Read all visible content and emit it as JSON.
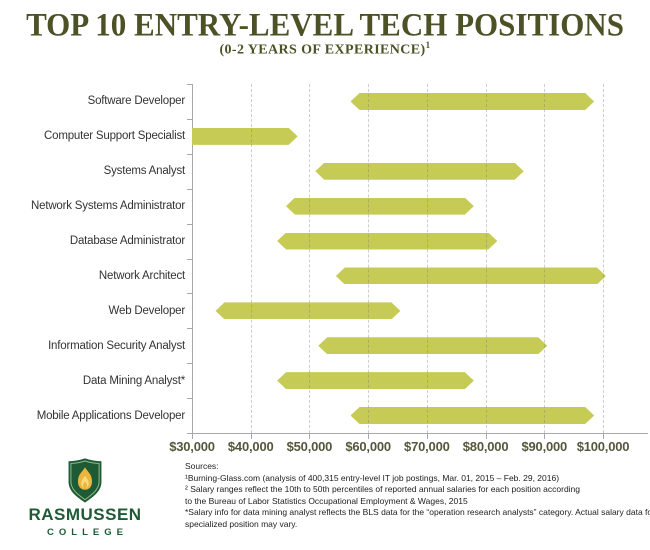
{
  "title": "TOP 10 ENTRY-LEVEL TECH POSITIONS",
  "subtitle": "(0-2 YEARS OF EXPERIENCE)",
  "subtitle_sup": "1",
  "chart_data": {
    "type": "bar",
    "variant": "horizontal-range",
    "title": "Top 10 Entry-Level Tech Positions (0-2 Years of Experience)",
    "xlabel": "",
    "ylabel": "",
    "xlim": [
      30000,
      100000
    ],
    "grid": "vertical-dashed",
    "legend": "none",
    "categories": [
      "Software Developer",
      "Computer Support Specialist",
      "Systems Analyst",
      "Network Systems Administrator",
      "Database Administrator",
      "Network Architect",
      "Web Developer",
      "Information Security Analyst",
      "Data Mining Analyst*",
      "Mobile Applications Developer"
    ],
    "series": [
      {
        "name": "Salary range (10th to 50th percentile)",
        "ranges": [
          [
            57000,
            98500
          ],
          [
            30000,
            48000
          ],
          [
            51000,
            86500
          ],
          [
            46000,
            78000
          ],
          [
            44500,
            82000
          ],
          [
            54500,
            100500
          ],
          [
            34000,
            65500
          ],
          [
            51500,
            90500
          ],
          [
            44500,
            78000
          ],
          [
            57000,
            98500
          ]
        ]
      }
    ],
    "x_ticks": [
      {
        "value": 30000,
        "label": "$30,000"
      },
      {
        "value": 40000,
        "label": "$40,000"
      },
      {
        "value": 50000,
        "label": "$50,000"
      },
      {
        "value": 60000,
        "label": "$60,000"
      },
      {
        "value": 70000,
        "label": "$70,000"
      },
      {
        "value": 80000,
        "label": "$80,000"
      },
      {
        "value": 90000,
        "label": "$90,000"
      },
      {
        "value": 100000,
        "label": "$100,000"
      }
    ]
  },
  "footer": {
    "sources_heading": "Sources:",
    "lines": [
      "¹Burning-Glass.com (analysis of 400,315 entry-level IT job postings, Mar. 01, 2015 – Feb. 29, 2016)",
      "² Salary ranges reflect the 10th to 50th percentiles of reported annual salaries for each position according",
      "to the Bureau of Labor Statistics Occupational Employment & Wages, 2015",
      "*Salary info for data mining analyst reflects the BLS data for the “operation research analysts” category. Actual salary data for this",
      "specialized position may vary."
    ]
  },
  "logo": {
    "name": "RASMUSSEN",
    "subname": "COLLEGE"
  },
  "colors": {
    "bar": "#c6cb55",
    "title": "#4c5126",
    "axis": "#a8a8a8",
    "category_label": "#333333",
    "tick_label": "#55573c",
    "brand_green": "#1e5b35",
    "flame_gold": "#ecb33d",
    "flame_light": "#f6d978"
  }
}
